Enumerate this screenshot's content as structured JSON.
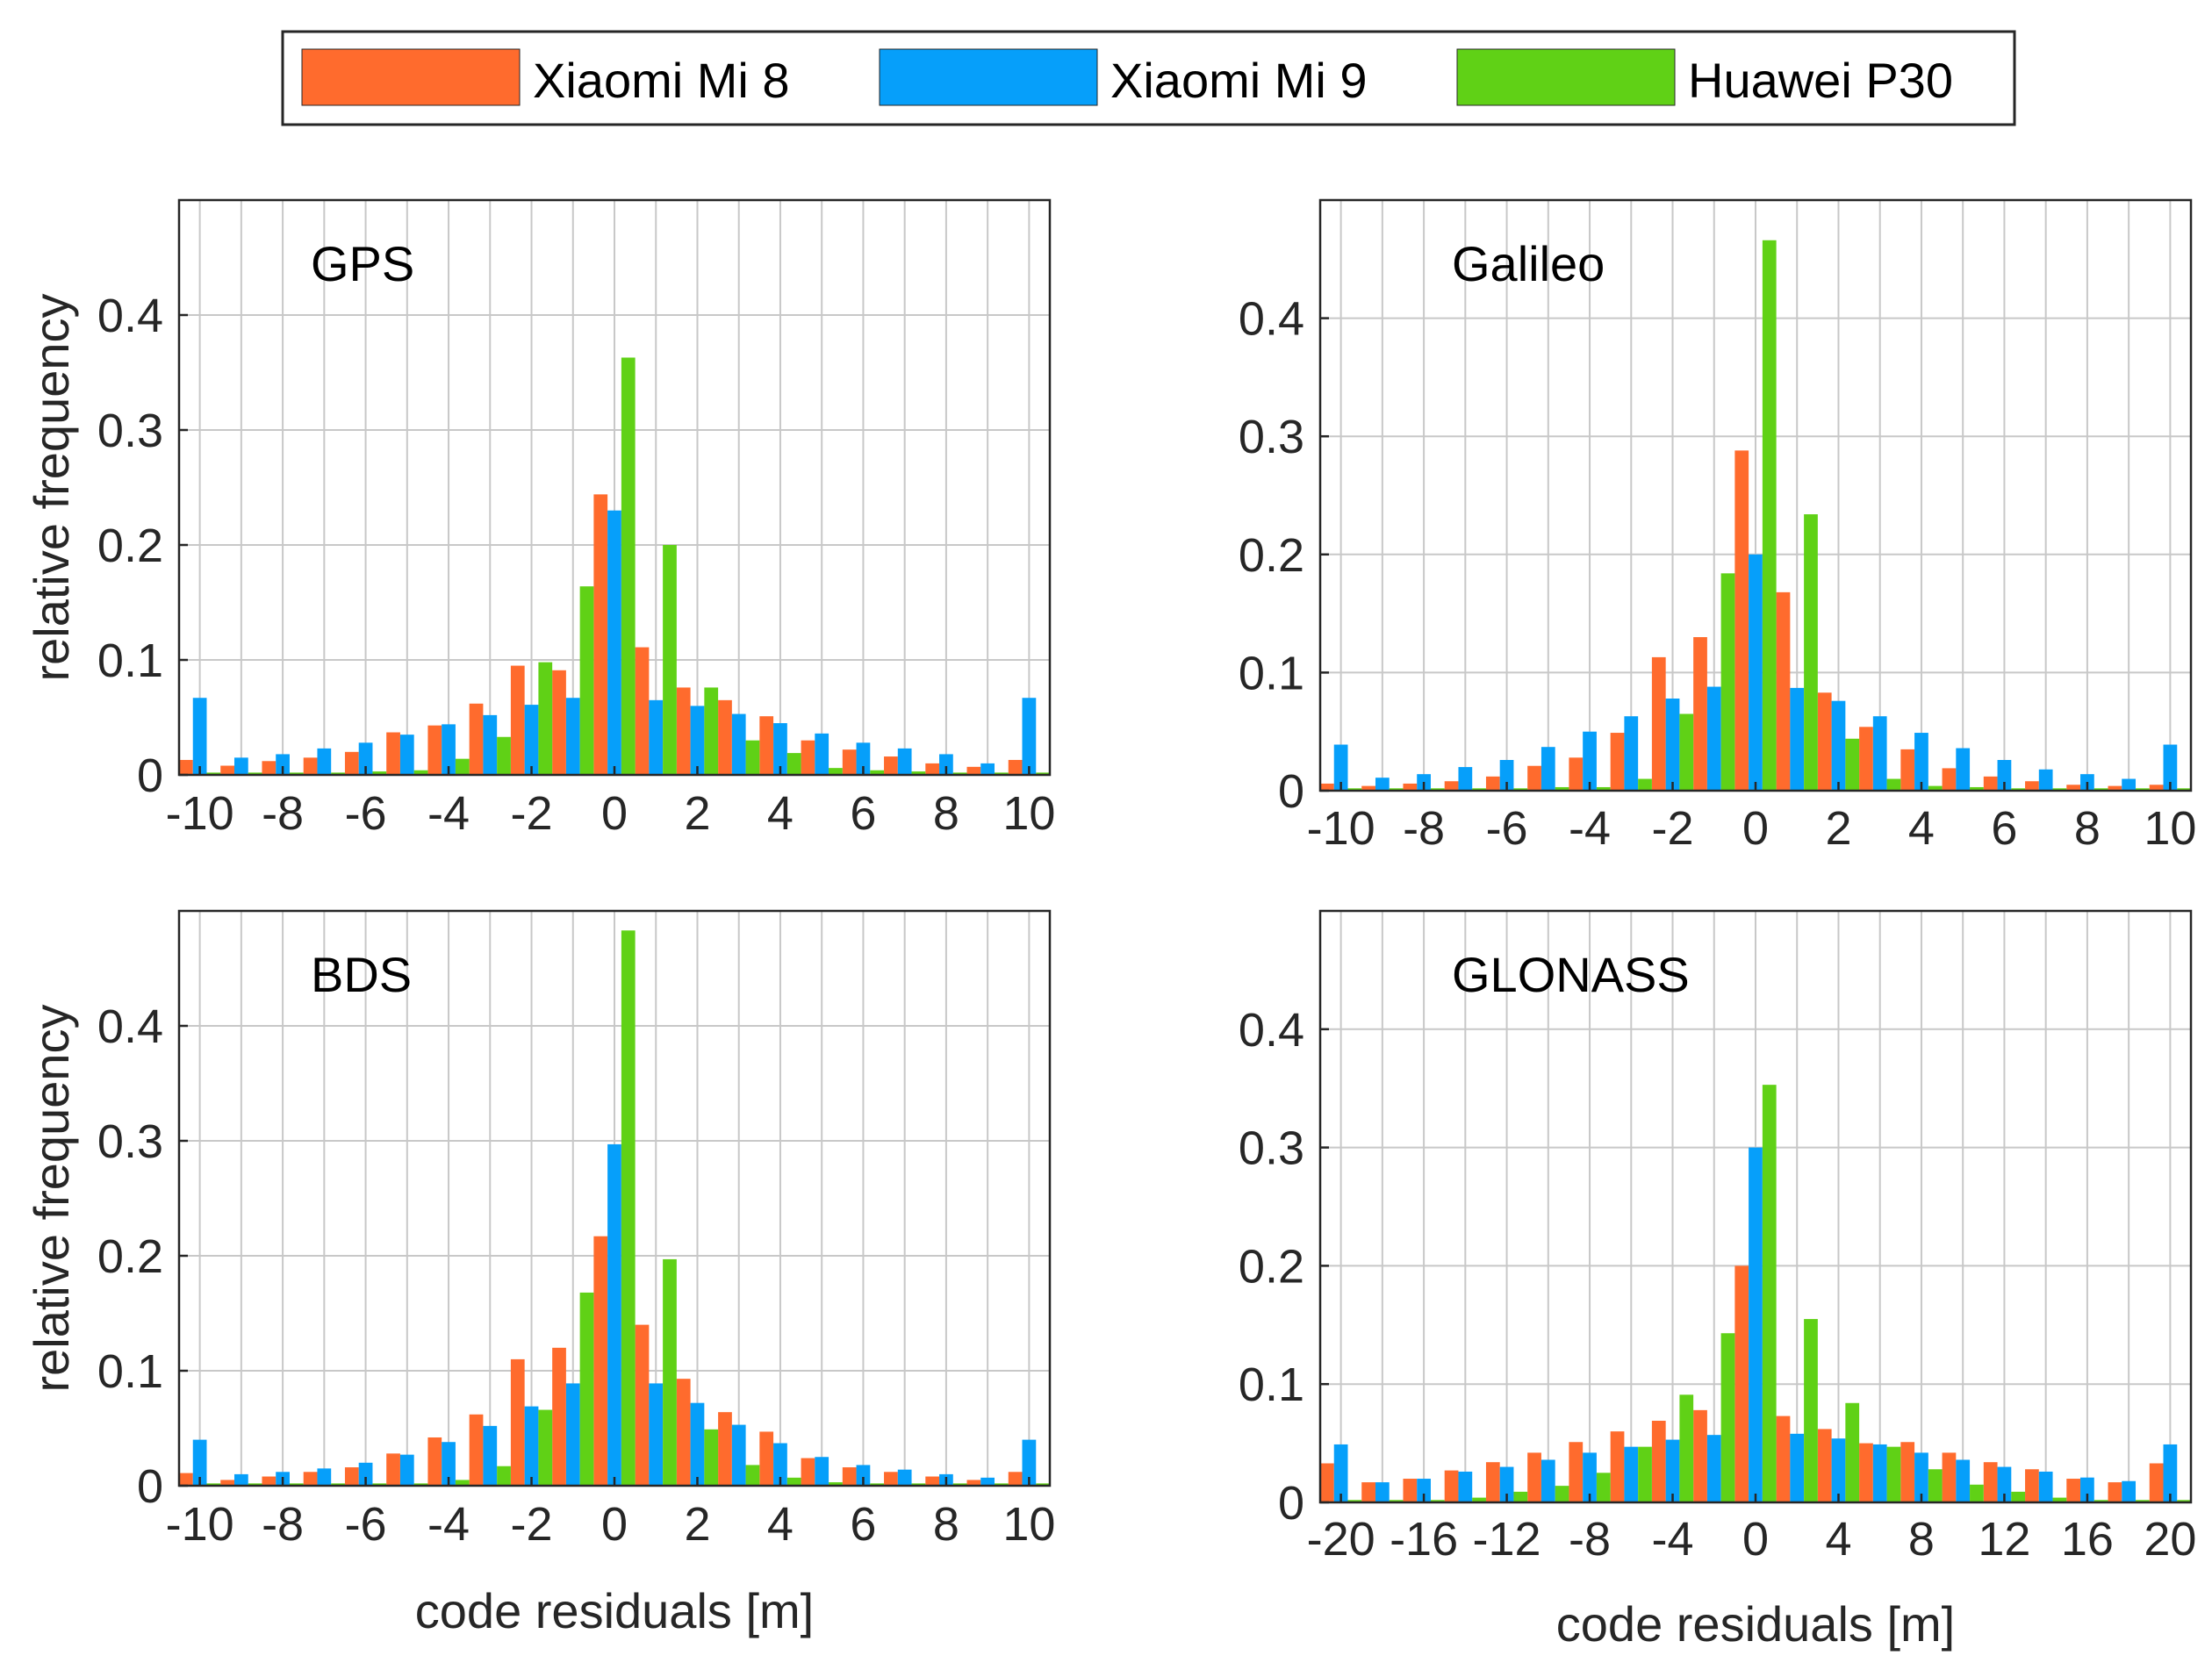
{
  "legend": [
    {
      "label": "Xiaomi Mi 8",
      "color": "#ff6b2d"
    },
    {
      "label": "Xiaomi Mi 9",
      "color": "#069ffa"
    },
    {
      "label": "Huawei P30",
      "color": "#60d116"
    }
  ],
  "chart_data": [
    {
      "type": "bar",
      "title": "GPS",
      "xlabel": "",
      "ylabel": "relative frequency",
      "xlim": [
        -10.5,
        10.5
      ],
      "ylim": [
        0,
        0.5
      ],
      "bin_width": 1,
      "xticks": [
        -10,
        -8,
        -6,
        -4,
        -2,
        0,
        2,
        4,
        6,
        8,
        10
      ],
      "xtick_labels": [
        "-10",
        "-8",
        "-6",
        "-4",
        "-2",
        "0",
        "2",
        "4",
        "6",
        "8",
        "10"
      ],
      "yticks": [
        0,
        0.1,
        0.2,
        0.3,
        0.4
      ],
      "ytick_labels": [
        "0",
        "0.1",
        "0.2",
        "0.3",
        "0.4"
      ],
      "x": [
        -10,
        -9,
        -8,
        -7,
        -6,
        -5,
        -4,
        -3,
        -2,
        -1,
        0,
        1,
        2,
        3,
        4,
        5,
        6,
        7,
        8,
        9,
        10
      ],
      "series": [
        {
          "name": "Xiaomi Mi 8",
          "values": [
            0.013,
            0.008,
            0.012,
            0.015,
            0.02,
            0.037,
            0.043,
            0.062,
            0.095,
            0.091,
            0.244,
            0.111,
            0.076,
            0.065,
            0.051,
            0.03,
            0.022,
            0.016,
            0.01,
            0.007,
            0.013
          ]
        },
        {
          "name": "Xiaomi Mi 9",
          "values": [
            0.067,
            0.015,
            0.018,
            0.023,
            0.028,
            0.035,
            0.044,
            0.052,
            0.061,
            0.067,
            0.23,
            0.065,
            0.06,
            0.053,
            0.045,
            0.036,
            0.028,
            0.023,
            0.018,
            0.01,
            0.067
          ]
        },
        {
          "name": "Huawei P30",
          "values": [
            0.002,
            0.002,
            0.002,
            0.002,
            0.003,
            0.004,
            0.014,
            0.033,
            0.098,
            0.164,
            0.363,
            0.2,
            0.076,
            0.03,
            0.019,
            0.006,
            0.004,
            0.003,
            0.002,
            0.002,
            0.002
          ]
        }
      ]
    },
    {
      "type": "bar",
      "title": "Galileo",
      "xlabel": "",
      "ylabel": "",
      "xlim": [
        -10.5,
        10.5
      ],
      "ylim": [
        0,
        0.5
      ],
      "bin_width": 1,
      "xticks": [
        -10,
        -8,
        -6,
        -4,
        -2,
        0,
        2,
        4,
        6,
        8,
        10
      ],
      "xtick_labels": [
        "-10",
        "-8",
        "-6",
        "-4",
        "-2",
        "0",
        "2",
        "4",
        "6",
        "8",
        "10"
      ],
      "yticks": [
        0,
        0.1,
        0.2,
        0.3,
        0.4
      ],
      "ytick_labels": [
        "0",
        "0.1",
        "0.2",
        "0.3",
        "0.4"
      ],
      "x": [
        -10,
        -9,
        -8,
        -7,
        -6,
        -5,
        -4,
        -3,
        -2,
        -1,
        0,
        1,
        2,
        3,
        4,
        5,
        6,
        7,
        8,
        9,
        10
      ],
      "series": [
        {
          "name": "Xiaomi Mi 8",
          "values": [
            0.006,
            0.004,
            0.006,
            0.008,
            0.012,
            0.021,
            0.028,
            0.049,
            0.113,
            0.13,
            0.288,
            0.168,
            0.083,
            0.054,
            0.035,
            0.019,
            0.012,
            0.008,
            0.005,
            0.004,
            0.005
          ]
        },
        {
          "name": "Xiaomi Mi 9",
          "values": [
            0.039,
            0.011,
            0.014,
            0.02,
            0.026,
            0.037,
            0.05,
            0.063,
            0.078,
            0.088,
            0.2,
            0.087,
            0.076,
            0.063,
            0.049,
            0.036,
            0.026,
            0.018,
            0.014,
            0.01,
            0.039
          ]
        },
        {
          "name": "Huawei P30",
          "values": [
            0.002,
            0.002,
            0.002,
            0.002,
            0.002,
            0.003,
            0.003,
            0.01,
            0.065,
            0.184,
            0.466,
            0.234,
            0.044,
            0.01,
            0.004,
            0.003,
            0.002,
            0.002,
            0.002,
            0.002,
            0.002
          ]
        }
      ]
    },
    {
      "type": "bar",
      "title": "BDS",
      "xlabel": "code residuals [m]",
      "ylabel": "relative frequency",
      "xlim": [
        -10.5,
        10.5
      ],
      "ylim": [
        0,
        0.5
      ],
      "bin_width": 1,
      "xticks": [
        -10,
        -8,
        -6,
        -4,
        -2,
        0,
        2,
        4,
        6,
        8,
        10
      ],
      "xtick_labels": [
        "-10",
        "-8",
        "-6",
        "-4",
        "-2",
        "0",
        "2",
        "4",
        "6",
        "8",
        "10"
      ],
      "yticks": [
        0,
        0.1,
        0.2,
        0.3,
        0.4
      ],
      "ytick_labels": [
        "0",
        "0.1",
        "0.2",
        "0.3",
        "0.4"
      ],
      "x": [
        -10,
        -9,
        -8,
        -7,
        -6,
        -5,
        -4,
        -3,
        -2,
        -1,
        0,
        1,
        2,
        3,
        4,
        5,
        6,
        7,
        8,
        9,
        10
      ],
      "series": [
        {
          "name": "Xiaomi Mi 8",
          "values": [
            0.011,
            0.005,
            0.008,
            0.012,
            0.016,
            0.028,
            0.042,
            0.062,
            0.11,
            0.12,
            0.217,
            0.14,
            0.093,
            0.064,
            0.047,
            0.024,
            0.016,
            0.012,
            0.008,
            0.005,
            0.012
          ]
        },
        {
          "name": "Xiaomi Mi 9",
          "values": [
            0.04,
            0.01,
            0.012,
            0.015,
            0.02,
            0.027,
            0.038,
            0.052,
            0.069,
            0.089,
            0.297,
            0.089,
            0.072,
            0.053,
            0.037,
            0.025,
            0.018,
            0.014,
            0.01,
            0.007,
            0.04
          ]
        },
        {
          "name": "Huawei P30",
          "values": [
            0.002,
            0.002,
            0.002,
            0.002,
            0.002,
            0.002,
            0.005,
            0.017,
            0.066,
            0.168,
            0.483,
            0.197,
            0.049,
            0.018,
            0.007,
            0.003,
            0.002,
            0.002,
            0.002,
            0.002,
            0.002
          ]
        }
      ]
    },
    {
      "type": "bar",
      "title": "GLONASS",
      "xlabel": "code residuals [m]",
      "ylabel": "",
      "xlim": [
        -21,
        21
      ],
      "ylim": [
        0,
        0.5
      ],
      "bin_width": 2,
      "xticks": [
        -20,
        -16,
        -12,
        -8,
        -4,
        0,
        4,
        8,
        12,
        16,
        20
      ],
      "xtick_labels": [
        "-20",
        "-16",
        "-12",
        "-8",
        "-4",
        "0",
        "4",
        "8",
        "12",
        "16",
        "20"
      ],
      "yticks": [
        0,
        0.1,
        0.2,
        0.3,
        0.4
      ],
      "ytick_labels": [
        "0",
        "0.1",
        "0.2",
        "0.3",
        "0.4"
      ],
      "x": [
        -20,
        -18,
        -16,
        -14,
        -12,
        -10,
        -8,
        -6,
        -4,
        -2,
        0,
        2,
        4,
        6,
        8,
        10,
        12,
        14,
        16,
        18,
        20
      ],
      "series": [
        {
          "name": "Xiaomi Mi 8",
          "values": [
            0.033,
            0.017,
            0.02,
            0.027,
            0.034,
            0.042,
            0.051,
            0.06,
            0.069,
            0.078,
            0.2,
            0.073,
            0.062,
            0.05,
            0.051,
            0.042,
            0.034,
            0.028,
            0.02,
            0.017,
            0.033
          ]
        },
        {
          "name": "Xiaomi Mi 9",
          "values": [
            0.049,
            0.017,
            0.02,
            0.026,
            0.03,
            0.036,
            0.042,
            0.047,
            0.053,
            0.057,
            0.3,
            0.058,
            0.054,
            0.049,
            0.042,
            0.036,
            0.03,
            0.026,
            0.021,
            0.018,
            0.049
          ]
        },
        {
          "name": "Huawei P30",
          "values": [
            0.002,
            0.002,
            0.002,
            0.004,
            0.009,
            0.014,
            0.025,
            0.047,
            0.091,
            0.143,
            0.353,
            0.155,
            0.084,
            0.047,
            0.028,
            0.015,
            0.009,
            0.004,
            0.002,
            0.002,
            0.002
          ]
        }
      ]
    }
  ]
}
